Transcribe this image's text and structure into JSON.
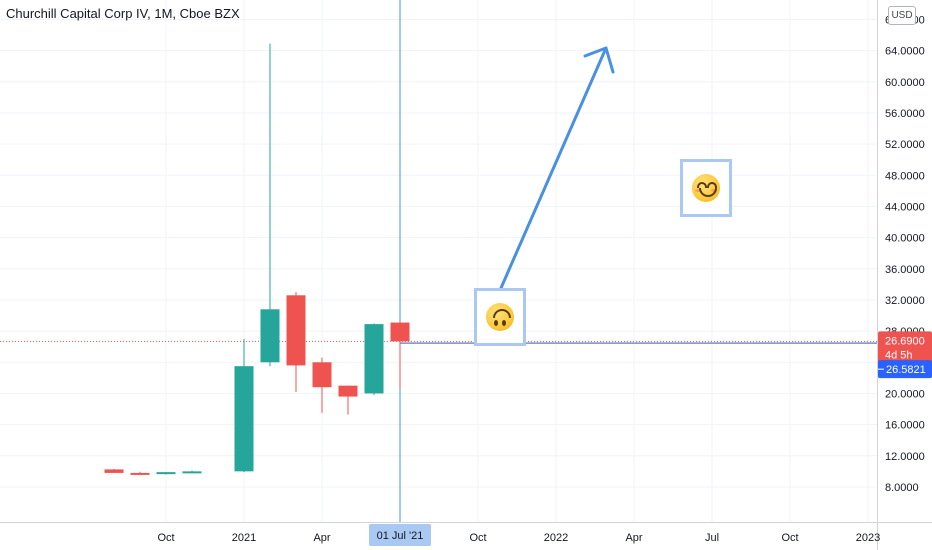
{
  "header": {
    "title": "Churchill Capital Corp IV, 1M, Cboe BZX",
    "currency": "USD"
  },
  "price_scale": {
    "last_price": "26.6900",
    "countdown": "4d 5h",
    "crosshair_price": "26.5821",
    "last_color": "#ef5350",
    "crosshair_color": "#2962ff"
  },
  "time_scale": {
    "crosshair_date": "01 Jul '21"
  },
  "drawings": {
    "arrow_color": "#4a90e2",
    "emojis": [
      {
        "name": "upside-down-face-icon"
      },
      {
        "name": "smiling-face-icon"
      }
    ]
  },
  "colors": {
    "up": "#26a69a",
    "down": "#ef5350",
    "grid": "#f0f3fa"
  },
  "chart_data": {
    "type": "candlestick",
    "title": "Churchill Capital Corp IV, 1M, Cboe BZX",
    "interval": "1M",
    "currency": "USD",
    "y_ticks": [
      8,
      12,
      16,
      20,
      24,
      28,
      32,
      36,
      40,
      44,
      48,
      52,
      56,
      60,
      64,
      68
    ],
    "y_tick_labels": [
      "8.0000",
      "12.0000",
      "16.0000",
      "20.0000",
      "24.0000",
      "28.0000",
      "32.0000",
      "36.0000",
      "40.0000",
      "44.0000",
      "48.0000",
      "52.0000",
      "56.0000",
      "60.0000",
      "64.0000",
      "68.0000"
    ],
    "ylim": [
      3.5,
      70.5
    ],
    "x_ticks": [
      "Oct",
      "2021",
      "Apr",
      "Jul",
      "Oct",
      "2022",
      "Apr",
      "Jul",
      "Oct",
      "2023"
    ],
    "x_tick_months": [
      "2020-10",
      "2021-01",
      "2021-04",
      "2021-07",
      "2021-10",
      "2022-01",
      "2022-04",
      "2022-07",
      "2022-10",
      "2023-01"
    ],
    "candles": [
      {
        "month": "2020-08",
        "open": 10.25,
        "high": 10.3,
        "low": 9.8,
        "close": 9.8
      },
      {
        "month": "2020-09",
        "open": 9.8,
        "high": 9.95,
        "low": 9.65,
        "close": 9.7
      },
      {
        "month": "2020-10",
        "open": 9.7,
        "high": 9.9,
        "low": 9.6,
        "close": 9.9
      },
      {
        "month": "2020-11",
        "open": 9.9,
        "high": 10.1,
        "low": 9.85,
        "close": 10.0
      },
      {
        "month": "2021-01",
        "open": 10.0,
        "high": 27.0,
        "low": 9.9,
        "close": 23.5
      },
      {
        "month": "2021-02",
        "open": 24.0,
        "high": 64.9,
        "low": 23.5,
        "close": 30.8
      },
      {
        "month": "2021-03",
        "open": 32.6,
        "high": 33.0,
        "low": 20.2,
        "close": 23.6
      },
      {
        "month": "2021-04",
        "open": 24.0,
        "high": 24.6,
        "low": 17.5,
        "close": 20.8
      },
      {
        "month": "2021-05",
        "open": 21.0,
        "high": 21.0,
        "low": 17.3,
        "close": 19.6
      },
      {
        "month": "2021-06",
        "open": 20.0,
        "high": 29.0,
        "low": 19.8,
        "close": 28.9
      },
      {
        "month": "2021-07",
        "open": 29.1,
        "high": 29.2,
        "low": 20.6,
        "close": 26.69
      }
    ],
    "last_price": 26.69,
    "crosshair": {
      "date": "2021-07-01",
      "price": 26.5821
    }
  }
}
